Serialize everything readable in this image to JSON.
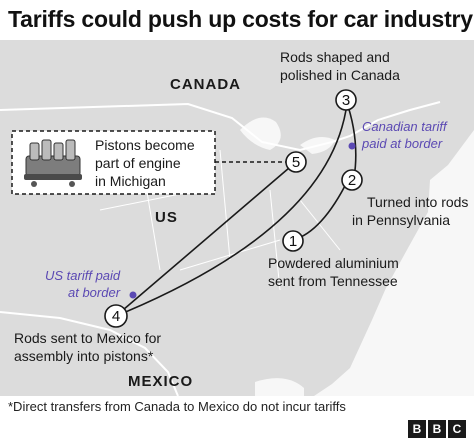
{
  "title": "Tariffs could push up costs for car industry",
  "regions": {
    "canada": "CANADA",
    "us": "US",
    "mexico": "MEXICO"
  },
  "steps": [
    {
      "number": "1",
      "lines": [
        "Powdered aluminium",
        "sent from Tennessee"
      ]
    },
    {
      "number": "2",
      "lines": [
        "Turned into rods",
        "in Pennsylvania"
      ]
    },
    {
      "number": "3",
      "lines": [
        "Rods shaped and",
        "polished in Canada"
      ]
    },
    {
      "number": "4",
      "lines": [
        "Rods sent to Mexico for",
        "assembly into pistons*"
      ]
    },
    {
      "number": "5",
      "lines": [
        "Pistons become",
        "part of engine",
        "in Michigan"
      ]
    }
  ],
  "tariffs": {
    "canadian": [
      "Canadian tariff",
      "paid at border"
    ],
    "us": [
      "US tariff paid",
      "at border"
    ]
  },
  "icons": {
    "engine": "engine-pistons-icon"
  },
  "footnote": "*Direct transfers from Canada to Mexico do not incur tariffs",
  "brand": {
    "letters": [
      "B",
      "B",
      "C"
    ]
  },
  "colors": {
    "land": "#dcdcdc",
    "water": "#f7f7f7",
    "border": "#ffffff",
    "route": "#1a1a1a",
    "tariff": "#5b49b3"
  }
}
